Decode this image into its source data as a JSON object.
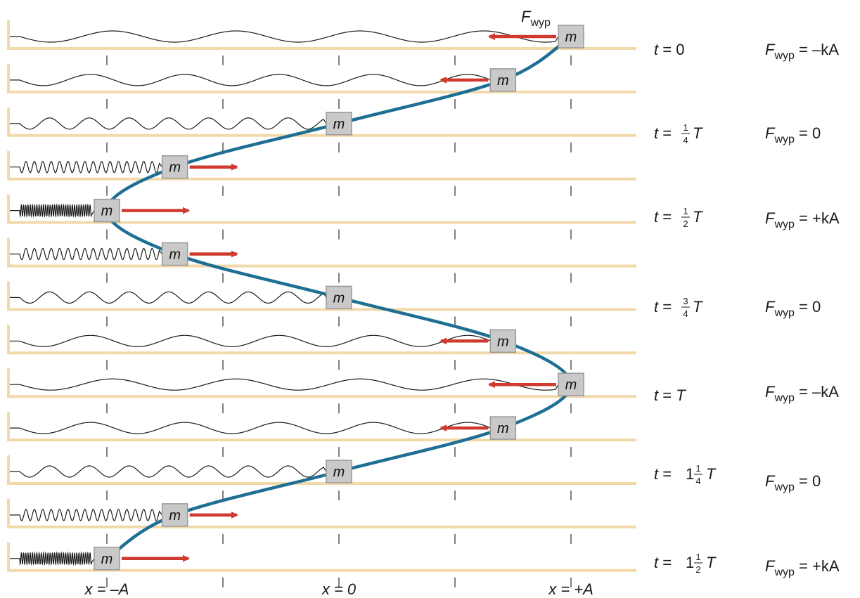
{
  "mass_label": "m",
  "force_label": "F",
  "force_sub": "wyp",
  "axis_labels": [
    "x = –A",
    "x = 0",
    "x = +A"
  ],
  "time_labels": [
    {
      "prefix": "t = ",
      "whole": "",
      "num": "",
      "den": "",
      "suffix": "0"
    },
    {
      "prefix": "t = ",
      "whole": "",
      "num": "1",
      "den": "4",
      "suffix": "T"
    },
    {
      "prefix": "t = ",
      "whole": "",
      "num": "1",
      "den": "2",
      "suffix": "T"
    },
    {
      "prefix": "t = ",
      "whole": "",
      "num": "3",
      "den": "4",
      "suffix": "T"
    },
    {
      "prefix": "t = ",
      "whole": "",
      "num": "",
      "den": "",
      "suffix": "T"
    },
    {
      "prefix": "t = ",
      "whole": "1",
      "num": "1",
      "den": "4",
      "suffix": "T"
    },
    {
      "prefix": "t = ",
      "whole": "1",
      "num": "1",
      "den": "2",
      "suffix": "T"
    }
  ],
  "force_values": [
    "= –kA",
    "= 0",
    "= +kA",
    "= 0",
    "= –kA",
    "= 0",
    "= +kA"
  ],
  "colors": {
    "floor": "#f2d9aa",
    "spring": "#1a1a1a",
    "mass_fill": "#c9c9c9",
    "mass_stroke": "#999999",
    "arrow": "#d03a2e",
    "trajectory": "#1f6f94",
    "tick": "#555555"
  }
}
